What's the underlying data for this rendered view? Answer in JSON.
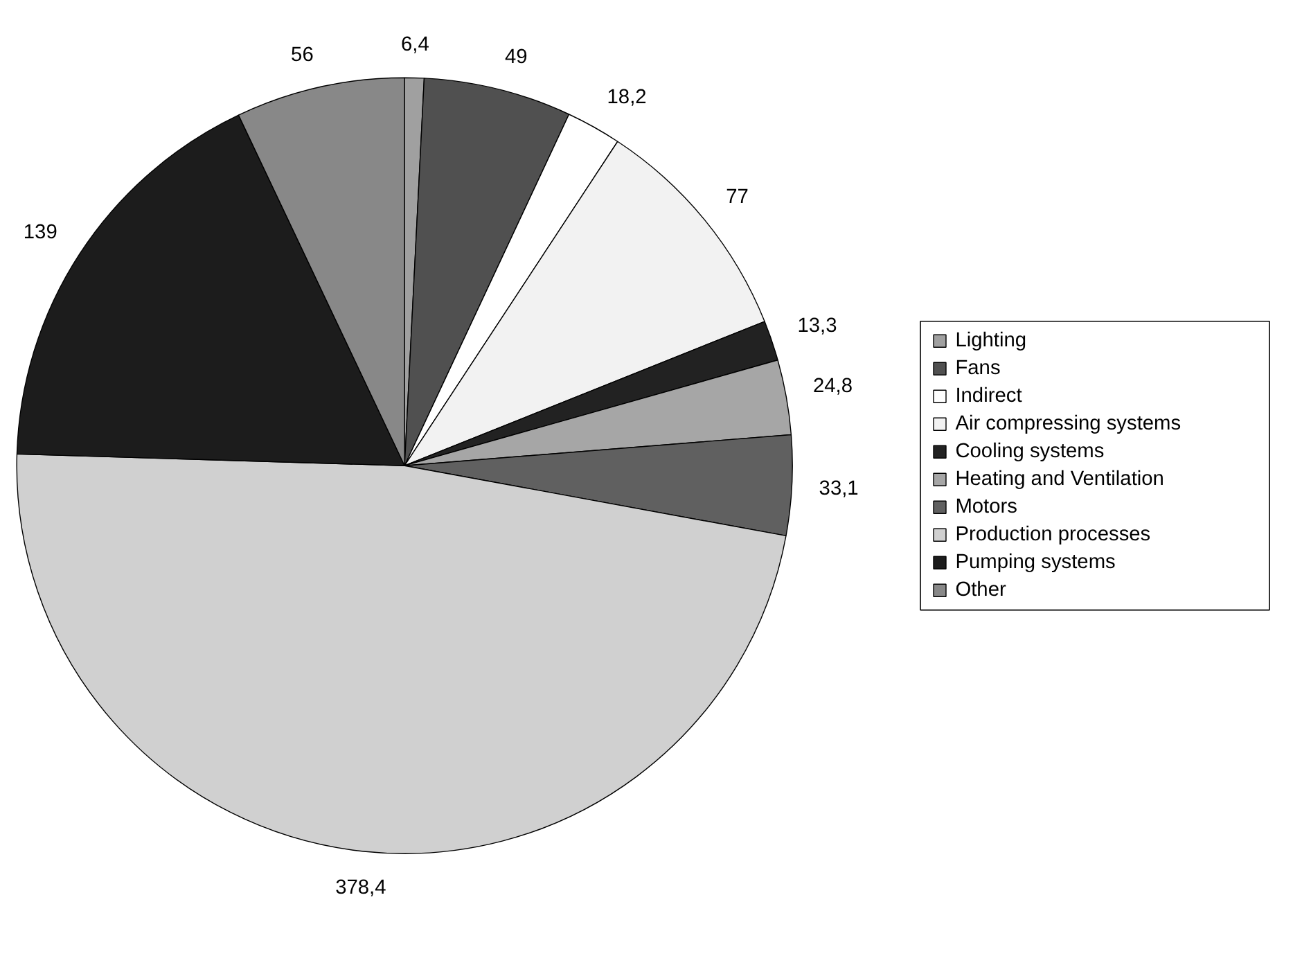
{
  "chart_data": {
    "type": "pie",
    "categories": [
      "Lighting",
      "Fans",
      "Indirect",
      "Air compressing systems",
      "Cooling systems",
      "Heating and Ventilation",
      "Motors",
      "Production processes",
      "Pumping systems",
      "Other"
    ],
    "values": [
      6.4,
      49,
      18.2,
      77,
      13.3,
      24.8,
      33.1,
      378.4,
      139,
      56
    ],
    "value_labels": [
      "6,4",
      "49",
      "18,2",
      "77",
      "13,3",
      "24,8",
      "33,1",
      "378,4",
      "139",
      "56"
    ],
    "colors": [
      "#a0a0a0",
      "#505050",
      "#ffffff",
      "#f2f2f2",
      "#222222",
      "#a6a6a6",
      "#606060",
      "#d0d0d0",
      "#1c1c1c",
      "#888888"
    ],
    "legend": "right"
  }
}
